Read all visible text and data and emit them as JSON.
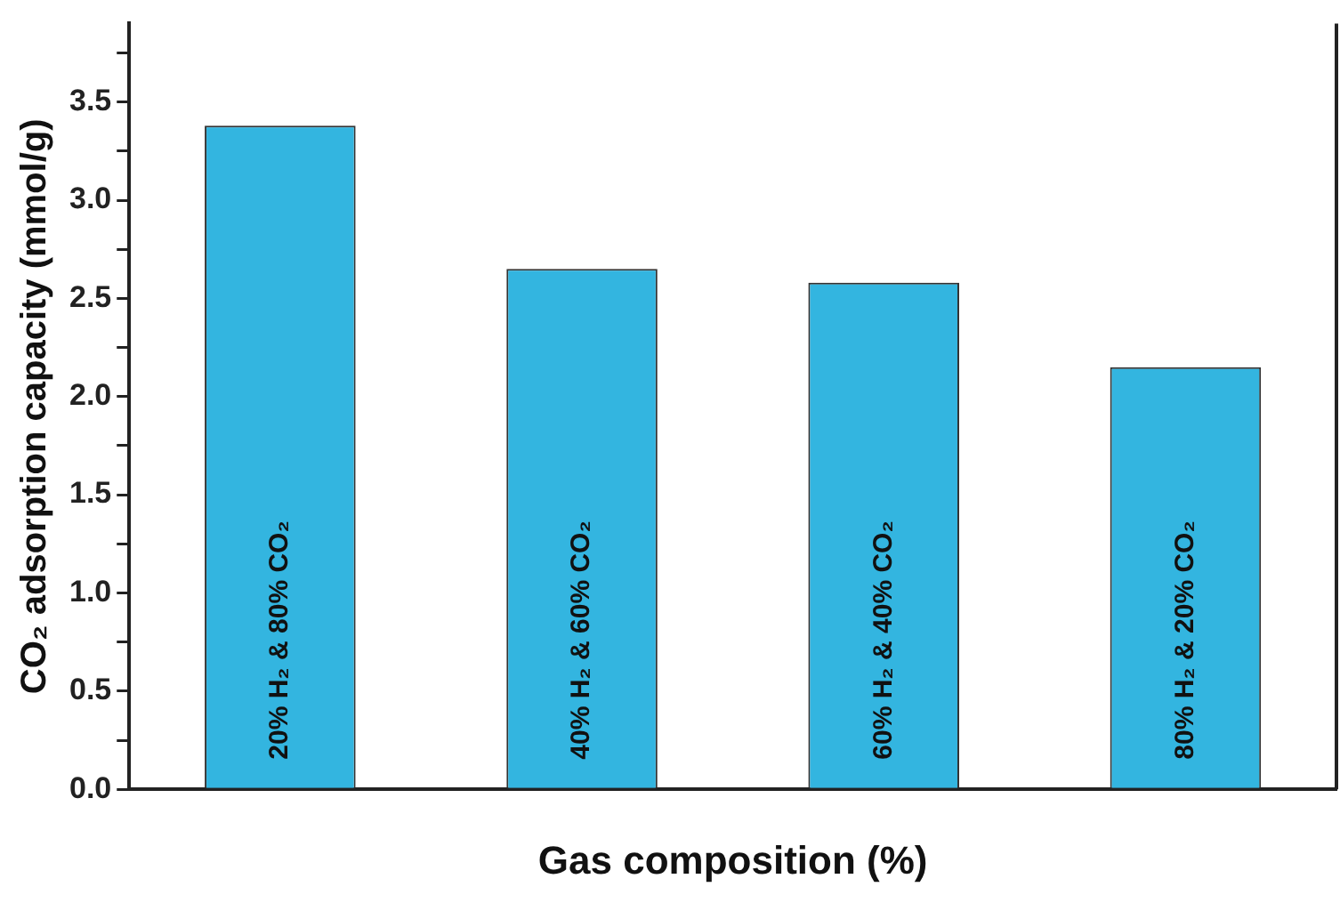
{
  "chart_data": {
    "type": "bar",
    "xlabel": "Gas composition (%)",
    "ylabel": "CO₂ adsorption capacity (mmol/g)",
    "categories": [
      "20% H₂ & 80% CO₂",
      "40% H₂ & 60% CO₂",
      "60% H₂ & 40% CO₂",
      "80% H₂ & 20% CO₂"
    ],
    "values": [
      3.38,
      2.65,
      2.58,
      2.15
    ],
    "color": "#33b5e0",
    "ylim": [
      0,
      3.9
    ],
    "yticks": [
      {
        "value": 0,
        "label": "0.0"
      },
      {
        "value": 0.25,
        "label": null
      },
      0.5,
      {
        "value": 0.75,
        "label": null
      },
      {
        "value": 1,
        "label": "1.0"
      },
      {
        "value": 1.25,
        "label": null
      },
      1.5,
      {
        "value": 1.75,
        "label": null
      },
      {
        "value": 2,
        "label": "2.0"
      },
      {
        "value": 2.25,
        "label": null
      },
      2.5,
      {
        "value": 2.75,
        "label": null
      },
      {
        "value": 3,
        "label": "3.0"
      },
      {
        "value": 3.25,
        "label": null
      },
      3.5,
      {
        "value": 3.75,
        "label": null
      }
    ],
    "grid": false,
    "legend": false
  }
}
